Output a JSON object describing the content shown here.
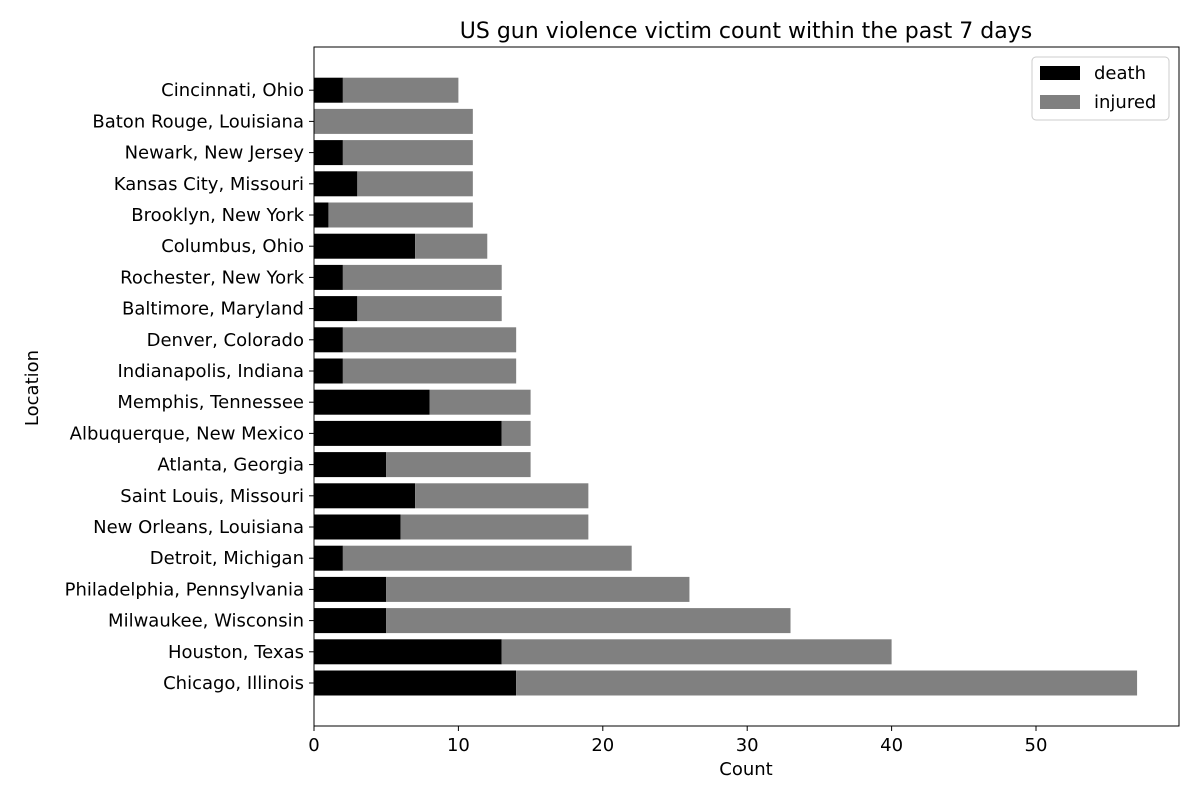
{
  "chart_data": {
    "type": "bar",
    "orientation": "horizontal",
    "stacked": true,
    "title": "US gun violence victim count within the past 7 days",
    "xlabel": "Count",
    "ylabel": "Location",
    "xlim": [
      0,
      60
    ],
    "xticks": [
      0,
      10,
      20,
      30,
      40,
      50
    ],
    "grid": false,
    "legend_position": "top-right",
    "categories": [
      "Chicago, Illinois",
      "Houston, Texas",
      "Milwaukee, Wisconsin",
      "Philadelphia, Pennsylvania",
      "Detroit, Michigan",
      "New Orleans, Louisiana",
      "Saint Louis, Missouri",
      "Atlanta, Georgia",
      "Albuquerque, New Mexico",
      "Memphis, Tennessee",
      "Indianapolis, Indiana",
      "Denver, Colorado",
      "Baltimore, Maryland",
      "Rochester, New York",
      "Columbus, Ohio",
      "Brooklyn, New York",
      "Kansas City, Missouri",
      "Newark, New Jersey",
      "Baton Rouge, Louisiana",
      "Cincinnati, Ohio"
    ],
    "series": [
      {
        "name": "death",
        "color": "#000000",
        "values": [
          14,
          13,
          5,
          5,
          2,
          6,
          7,
          5,
          13,
          8,
          2,
          2,
          3,
          2,
          7,
          1,
          3,
          2,
          0,
          2
        ]
      },
      {
        "name": "injured",
        "color": "#808080",
        "values": [
          43,
          27,
          28,
          21,
          20,
          13,
          12,
          10,
          2,
          7,
          12,
          12,
          10,
          11,
          5,
          10,
          8,
          9,
          11,
          8
        ]
      }
    ]
  }
}
